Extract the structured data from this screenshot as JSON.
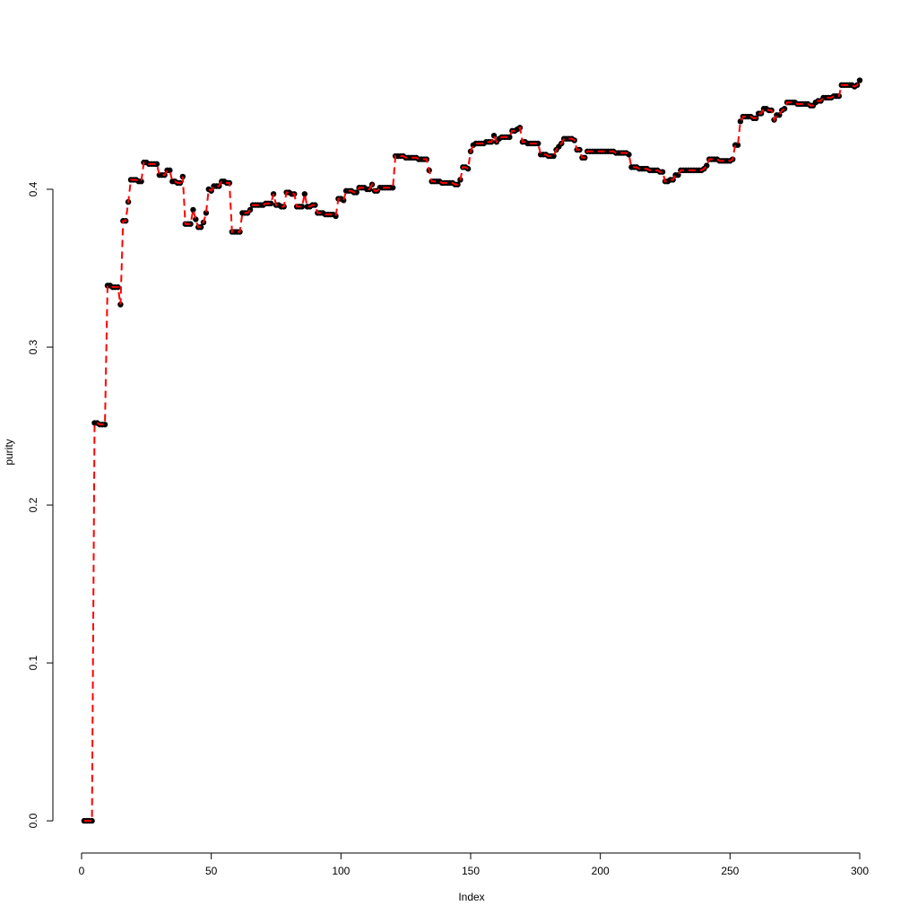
{
  "chart_data": {
    "type": "line",
    "xlabel": "Index",
    "ylabel": "purity",
    "values": [
      0,
      0,
      0,
      0,
      0.252,
      0.252,
      0.251,
      0.251,
      0.251,
      0.339,
      0.339,
      0.338,
      0.338,
      0.338,
      0.327,
      0.38,
      0.38,
      0.392,
      0.406,
      0.406,
      0.406,
      0.405,
      0.405,
      0.417,
      0.417,
      0.416,
      0.416,
      0.416,
      0.416,
      0.409,
      0.409,
      0.409,
      0.412,
      0.412,
      0.405,
      0.405,
      0.404,
      0.404,
      0.408,
      0.378,
      0.378,
      0.378,
      0.387,
      0.381,
      0.376,
      0.376,
      0.379,
      0.385,
      0.4,
      0.399,
      0.402,
      0.402,
      0.402,
      0.405,
      0.405,
      0.404,
      0.404,
      0.373,
      0.373,
      0.373,
      0.373,
      0.385,
      0.385,
      0.385,
      0.387,
      0.39,
      0.39,
      0.39,
      0.39,
      0.39,
      0.391,
      0.391,
      0.391,
      0.397,
      0.39,
      0.39,
      0.389,
      0.389,
      0.398,
      0.398,
      0.397,
      0.397,
      0.389,
      0.389,
      0.389,
      0.397,
      0.389,
      0.389,
      0.39,
      0.39,
      0.385,
      0.385,
      0.385,
      0.384,
      0.384,
      0.384,
      0.384,
      0.383,
      0.394,
      0.394,
      0.393,
      0.399,
      0.399,
      0.399,
      0.398,
      0.398,
      0.401,
      0.401,
      0.401,
      0.4,
      0.4,
      0.403,
      0.399,
      0.399,
      0.401,
      0.401,
      0.401,
      0.401,
      0.401,
      0.401,
      0.421,
      0.421,
      0.421,
      0.421,
      0.42,
      0.42,
      0.42,
      0.42,
      0.42,
      0.419,
      0.419,
      0.419,
      0.419,
      0.412,
      0.405,
      0.405,
      0.405,
      0.405,
      0.404,
      0.404,
      0.404,
      0.404,
      0.404,
      0.403,
      0.403,
      0.406,
      0.414,
      0.414,
      0.413,
      0.424,
      0.428,
      0.429,
      0.429,
      0.429,
      0.429,
      0.43,
      0.43,
      0.43,
      0.434,
      0.43,
      0.432,
      0.433,
      0.433,
      0.433,
      0.433,
      0.437,
      0.437,
      0.438,
      0.439,
      0.43,
      0.43,
      0.429,
      0.429,
      0.429,
      0.429,
      0.429,
      0.422,
      0.422,
      0.422,
      0.421,
      0.421,
      0.421,
      0.425,
      0.427,
      0.429,
      0.432,
      0.432,
      0.432,
      0.432,
      0.431,
      0.425,
      0.425,
      0.42,
      0.42,
      0.424,
      0.424,
      0.424,
      0.424,
      0.424,
      0.424,
      0.424,
      0.424,
      0.424,
      0.424,
      0.424,
      0.423,
      0.423,
      0.423,
      0.423,
      0.423,
      0.422,
      0.414,
      0.414,
      0.414,
      0.413,
      0.413,
      0.413,
      0.413,
      0.412,
      0.412,
      0.412,
      0.412,
      0.411,
      0.411,
      0.405,
      0.405,
      0.406,
      0.406,
      0.409,
      0.409,
      0.412,
      0.412,
      0.412,
      0.412,
      0.412,
      0.412,
      0.412,
      0.412,
      0.412,
      0.413,
      0.415,
      0.419,
      0.419,
      0.419,
      0.419,
      0.418,
      0.418,
      0.418,
      0.418,
      0.418,
      0.419,
      0.428,
      0.428,
      0.443,
      0.446,
      0.446,
      0.446,
      0.446,
      0.445,
      0.445,
      0.448,
      0.448,
      0.451,
      0.451,
      0.45,
      0.45,
      0.444,
      0.447,
      0.447,
      0.45,
      0.451,
      0.455,
      0.455,
      0.455,
      0.455,
      0.454,
      0.454,
      0.454,
      0.454,
      0.454,
      0.453,
      0.453,
      0.455,
      0.456,
      0.456,
      0.458,
      0.458,
      0.458,
      0.458,
      0.459,
      0.459,
      0.459,
      0.466,
      0.466,
      0.466,
      0.466,
      0.466,
      0.465,
      0.466,
      0.469
    ],
    "marker_color": "#000000",
    "line_color": "#ff0000",
    "line_style": "dashed",
    "xlim": [
      -10.96,
      311.96
    ],
    "xticks": [
      0,
      50,
      100,
      150,
      200,
      250,
      300
    ],
    "ylim": [
      -0.0187,
      0.4867
    ],
    "yticks": [
      {
        "value": 0,
        "label": "0.0"
      },
      0.1,
      0.2,
      0.3,
      0.4
    ]
  }
}
